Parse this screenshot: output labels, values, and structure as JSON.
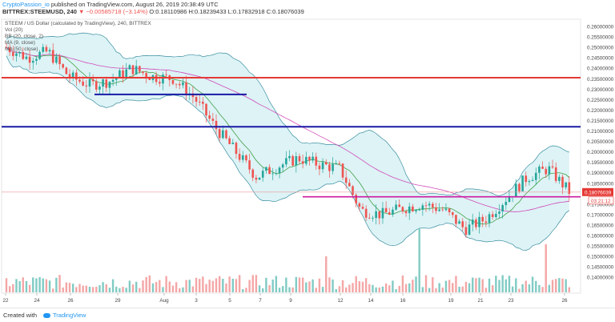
{
  "header": {
    "author": "CryptoPassion_io",
    "published": "published on TradingView.com, August 26, 2019 20:38:49 UTC",
    "symbol_line": "BITTREX:STEEMUSD, 240",
    "change": "▼ −0.00585718 (−3.14%)",
    "ohlc": "O:0.18110986 H:0.18239433 L:0.17832918 C:0.18076039"
  },
  "legend": {
    "title": "STEEM / US Dollar (calculated by TradingView), 240, BITTREX",
    "vol": "Vol (20)",
    "bb": "BB (20, close, 2)",
    "ma1": "MA (9, close)",
    "ma2": "MA (50, close)"
  },
  "footer": {
    "created_with": "Created with",
    "brand": "TradingView"
  },
  "colors": {
    "up": "#26a69a",
    "down": "#ef5350",
    "red_line": "#e53935",
    "blue_line": "#1a1aa6",
    "magenta_line": "#cc1aa0",
    "price_tag": "#e53935"
  },
  "price_axis": {
    "labels": [
      "0.26000000",
      "0.25500000",
      "0.25000000",
      "0.24500000",
      "0.24000000",
      "0.23500000",
      "0.23000000",
      "0.22500000",
      "0.22000000",
      "0.21500000",
      "0.21000000",
      "0.20500000",
      "0.20000000",
      "0.19500000",
      "0.19000000",
      "0.18500000",
      "0.18000000",
      "0.17500000",
      "0.17000000",
      "0.16500000",
      "0.16000000",
      "0.15500000",
      "0.15000000",
      "0.14500000",
      "0.14000000"
    ],
    "current_price": "0.18076039",
    "countdown": "03:21:12"
  },
  "time_axis": {
    "labels": [
      "22",
      "24",
      "26",
      "29",
      "Aug",
      "3",
      "5",
      "7",
      "9",
      "12",
      "14",
      "16",
      "19",
      "21",
      "23",
      "26"
    ]
  },
  "chart_data": {
    "type": "candlestick",
    "symbol": "BITTREX:STEEMUSD",
    "interval": "240",
    "ylim": [
      0.137,
      0.262
    ],
    "horizontal_levels": [
      {
        "price": 0.2355,
        "color": "#e53935"
      },
      {
        "price": 0.212,
        "color": "#1a1aa6"
      },
      {
        "price": 0.1785,
        "color": "#cc1aa0"
      }
    ],
    "segments": [
      {
        "price": 0.2275,
        "from": "26",
        "to": "6",
        "color": "#1a1aa6"
      }
    ],
    "close_path": [
      {
        "date": "22",
        "close": 0.25
      },
      {
        "date": "24",
        "close": 0.245
      },
      {
        "date": "26",
        "close": 0.248
      },
      {
        "date": "27",
        "close": 0.236
      },
      {
        "date": "29",
        "close": 0.232
      },
      {
        "date": "31",
        "close": 0.234
      },
      {
        "date": "Aug",
        "close": 0.24
      },
      {
        "date": "2",
        "close": 0.236
      },
      {
        "date": "3",
        "close": 0.235
      },
      {
        "date": "5",
        "close": 0.226
      },
      {
        "date": "7",
        "close": 0.212
      },
      {
        "date": "8",
        "close": 0.2
      },
      {
        "date": "9",
        "close": 0.188
      },
      {
        "date": "11",
        "close": 0.193
      },
      {
        "date": "12",
        "close": 0.197
      },
      {
        "date": "13",
        "close": 0.194
      },
      {
        "date": "14",
        "close": 0.192
      },
      {
        "date": "15",
        "close": 0.172
      },
      {
        "date": "16",
        "close": 0.17
      },
      {
        "date": "18",
        "close": 0.173
      },
      {
        "date": "19",
        "close": 0.175
      },
      {
        "date": "20",
        "close": 0.172
      },
      {
        "date": "21",
        "close": 0.163
      },
      {
        "date": "22b",
        "close": 0.168
      },
      {
        "date": "23",
        "close": 0.178
      },
      {
        "date": "24b",
        "close": 0.188
      },
      {
        "date": "25",
        "close": 0.192
      },
      {
        "date": "26",
        "close": 0.181
      }
    ]
  }
}
